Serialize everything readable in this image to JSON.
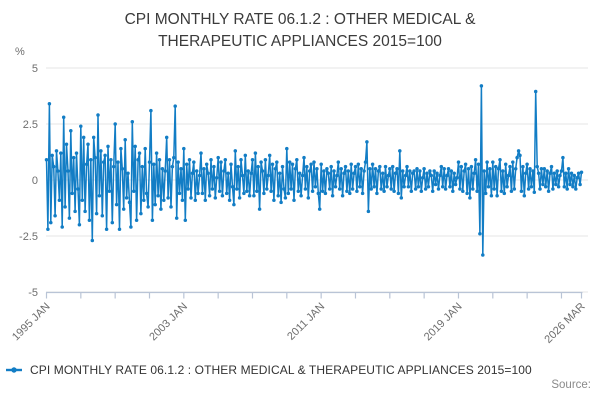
{
  "title": "CPI MONTHLY RATE 06.1.2 : OTHER MEDICAL & THERAPEUTIC APPLIANCES 2015=100",
  "title_lines": [
    "CPI MONTHLY RATE 06.1.2 : OTHER MEDICAL &",
    "THERAPEUTIC APPLIANCES 2015=100"
  ],
  "y_axis": {
    "unit": "%",
    "tick_labels": [
      "5",
      "2.5",
      "0",
      "-2.5",
      "-5"
    ]
  },
  "legend": {
    "label": "CPI MONTHLY RATE 06.1.2 : OTHER MEDICAL & THERAPEUTIC APPLIANCES 2015=100",
    "marker_color": "#127DC5"
  },
  "footer": {
    "source_label": "Source:"
  },
  "colors": {
    "series": "#127DC5",
    "grid": "#e6e6e6",
    "axis": "#b9c4d6",
    "axis_text": "#6e6e6e"
  },
  "chart_data": {
    "type": "line",
    "title": "CPI MONTHLY RATE 06.1.2 : OTHER MEDICAL & THERAPEUTIC APPLIANCES 2015=100",
    "ylabel": "%",
    "ylim": [
      -5,
      5
    ],
    "yticks": [
      5,
      2.5,
      0,
      -2.5,
      -5
    ],
    "grid": true,
    "legend_position": "bottom",
    "frequency": "monthly",
    "x_start": "1995 JAN",
    "x_end": "2026 MAR",
    "x_tick_labels": [
      "1995 JAN",
      "2003 JAN",
      "2011 JAN",
      "2019 JAN",
      "2026 MAR"
    ],
    "x_tick_months": [
      0,
      96,
      192,
      288,
      374
    ],
    "minor_tick_step_months": 24,
    "series": [
      {
        "name": "CPI MONTHLY RATE 06.1.2 : OTHER MEDICAL & THERAPEUTIC APPLIANCES 2015=100",
        "color": "#127DC5",
        "values": [
          0.9,
          -2.2,
          3.4,
          -1.9,
          1.1,
          0.6,
          -1.6,
          1.3,
          0.4,
          -0.9,
          1.2,
          -2.1,
          2.8,
          -1.2,
          1.6,
          0.4,
          -1.7,
          2.2,
          -0.6,
          1.0,
          -1.4,
          1.2,
          -0.4,
          -2.0,
          2.4,
          -0.9,
          1.9,
          -1.4,
          0.7,
          1.6,
          -1.8,
          0.9,
          -2.7,
          1.9,
          1.0,
          -1.5,
          2.9,
          -0.7,
          1.3,
          -1.6,
          0.8,
          1.1,
          -2.2,
          1.5,
          -0.5,
          0.9,
          -1.9,
          0.6,
          2.5,
          -1.1,
          0.8,
          -2.2,
          1.4,
          0.5,
          -1.3,
          1.8,
          -0.8,
          0.3,
          -1.0,
          -2.1,
          2.6,
          -0.5,
          1.5,
          -1.8,
          0.9,
          1.2,
          -1.5,
          0.6,
          -0.9,
          1.4,
          -0.6,
          -1.2,
          0.8,
          3.1,
          -1.8,
          0.7,
          -1.1,
          1.2,
          -0.7,
          0.9,
          -1.3,
          0.5,
          -0.9,
          0.4,
          1.9,
          -0.8,
          0.9,
          -1.2,
          0.6,
          1.0,
          3.3,
          -1.7,
          0.8,
          -0.6,
          0.5,
          -0.9,
          1.4,
          -1.8,
          0.7,
          -0.4,
          0.9,
          -0.8,
          0.3,
          0.8,
          -0.9,
          0.4,
          -0.6,
          0.2,
          1.2,
          -0.6,
          0.5,
          -0.9,
          0.7,
          0.3,
          -0.7,
          0.9,
          -0.4,
          0.6,
          -0.8,
          0.1,
          1.0,
          -0.5,
          0.8,
          -0.7,
          0.4,
          0.9,
          -0.6,
          0.3,
          -0.9,
          0.7,
          -0.3,
          -1.1,
          1.3,
          -0.4,
          0.6,
          -0.8,
          0.9,
          0.2,
          -0.6,
          1.1,
          -0.5,
          0.4,
          -0.7,
          0.3,
          0.9,
          -0.7,
          1.2,
          -0.5,
          0.6,
          -1.3,
          0.8,
          0.4,
          -0.6,
          0.9,
          -0.4,
          0.2,
          1.1,
          -0.5,
          0.7,
          -0.9,
          0.5,
          0.8,
          -0.7,
          0.3,
          -1.0,
          0.6,
          -0.4,
          -0.8,
          1.4,
          -0.6,
          0.8,
          -0.4,
          0.7,
          -0.9,
          0.5,
          0.9,
          -0.5,
          0.3,
          -0.7,
          0.2,
          1.0,
          -0.4,
          0.6,
          -0.8,
          0.4,
          0.7,
          -0.5,
          0.8,
          -0.3,
          0.5,
          -0.6,
          -1.3,
          0.7,
          -0.5,
          0.4,
          -0.6,
          0.5,
          0.3,
          -0.4,
          0.6,
          -0.7,
          0.4,
          -0.3,
          0.2,
          0.8,
          -0.4,
          0.5,
          -0.7,
          0.3,
          0.6,
          -0.5,
          0.4,
          -0.6,
          0.7,
          -0.4,
          0.3,
          0.6,
          -0.5,
          0.7,
          -0.3,
          0.5,
          -0.6,
          0.4,
          0.8,
          1.7,
          -1.4,
          0.5,
          -0.4,
          0.7,
          -0.3,
          0.5,
          -0.6,
          0.4,
          0.6,
          -0.4,
          0.3,
          -0.5,
          0.6,
          -0.3,
          0.2,
          0.5,
          -0.4,
          0.6,
          -0.5,
          0.3,
          0.5,
          -0.6,
          1.3,
          -0.8,
          0.4,
          -0.3,
          0.2,
          0.6,
          -0.3,
          0.4,
          -0.5,
          0.3,
          0.4,
          -0.4,
          0.5,
          -0.3,
          0.4,
          -0.5,
          0.1,
          0.5,
          -0.4,
          0.3,
          -0.3,
          0.4,
          0.2,
          -0.5,
          0.4,
          -0.2,
          0.3,
          -0.4,
          0.2,
          0.6,
          -0.3,
          0.5,
          -0.4,
          0.2,
          0.5,
          -0.3,
          0.4,
          -0.5,
          0.3,
          -0.2,
          0.1,
          0.8,
          -0.4,
          0.6,
          -0.5,
          0.4,
          0.7,
          -0.6,
          0.5,
          -0.8,
          0.6,
          -0.4,
          0.3,
          0.9,
          -0.5,
          0.7,
          -2.4,
          4.2,
          -3.35,
          0.4,
          -0.6,
          0.8,
          -0.3,
          0.5,
          -0.7,
          0.8,
          -0.4,
          0.6,
          -0.7,
          0.5,
          0.9,
          -0.5,
          0.4,
          -0.6,
          0.7,
          -0.3,
          0.2,
          0.6,
          -0.5,
          0.8,
          -0.4,
          0.5,
          1.0,
          1.3,
          1.1,
          -0.5,
          0.6,
          -0.7,
          0.3,
          0.7,
          -0.4,
          0.5,
          -0.3,
          0.4,
          -0.55,
          3.95,
          0.6,
          0.3,
          -0.4,
          0.5,
          -0.2,
          0.5,
          -0.3,
          0.4,
          -0.5,
          0.3,
          0.6,
          -0.4,
          0.3,
          -0.2,
          0.4,
          -0.3,
          0.2,
          0.4,
          1.0,
          -0.3,
          0.3,
          -0.4,
          0.5,
          -0.2,
          0.3,
          -0.3,
          0.2,
          -0.4,
          0.1,
          0.3,
          -0.2,
          0.35
        ]
      }
    ]
  }
}
